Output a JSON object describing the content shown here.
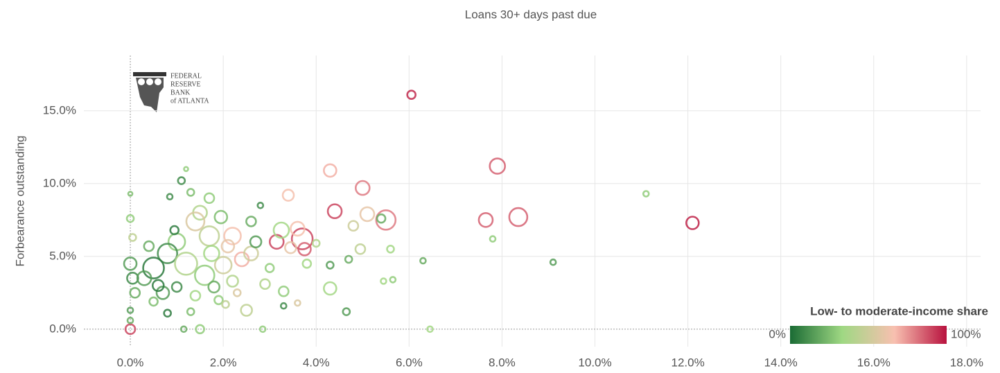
{
  "chart_data": {
    "type": "scatter",
    "title": "Loans 30+ days past due",
    "y_label": "Forbearance outstanding",
    "logo": [
      "FEDERAL",
      "RESERVE",
      "BANK",
      "of ATLANTA"
    ],
    "xlim": [
      -1,
      18.3
    ],
    "ylim": [
      -1.2,
      18.8
    ],
    "xticks": [
      {
        "value": 0,
        "label": "0.0%"
      },
      {
        "value": 2,
        "label": "2.0%"
      },
      {
        "value": 4,
        "label": "4.0%"
      },
      {
        "value": 6,
        "label": "6.0%"
      },
      {
        "value": 8,
        "label": "8.0%"
      },
      {
        "value": 10,
        "label": "10.0%"
      },
      {
        "value": 12,
        "label": "12.0%"
      },
      {
        "value": 14,
        "label": "14.0%"
      },
      {
        "value": 16,
        "label": "16.0%"
      },
      {
        "value": 18,
        "label": "18.0%"
      }
    ],
    "yticks": [
      {
        "value": 0,
        "label": "0.0%"
      },
      {
        "value": 5,
        "label": "5.0%"
      },
      {
        "value": 10,
        "label": "10.0%"
      },
      {
        "value": 15,
        "label": "15.0%"
      }
    ],
    "grid": true,
    "legend": {
      "title": "Low- to moderate-income share",
      "min_label": "0%",
      "max_label": "100%",
      "position": "lower-right"
    },
    "colorscale": [
      "#1a6b34",
      "#9fd883",
      "#f8c0b0",
      "#b8123e"
    ],
    "series": [
      {
        "x": [
          6.05,
          7.9,
          4.3,
          5.0,
          3.4,
          4.4,
          5.1,
          5.5,
          8.35,
          7.65,
          12.1,
          11.1,
          9.1,
          7.8,
          6.45,
          6.3,
          5.65,
          5.45,
          5.6,
          4.95,
          4.8,
          5.4,
          4.3,
          4.65,
          4.7,
          3.7,
          3.6,
          3.75,
          3.15,
          3.45,
          3.25,
          3.6,
          3.3,
          3.3,
          2.85,
          2.5,
          2.4,
          2.2,
          2.6,
          2.8,
          3.8,
          4.0,
          4.3,
          1.5,
          1.15,
          0.0,
          0.0,
          0.0,
          0.0,
          0.0,
          0.05,
          0.0,
          0.05,
          0.1,
          1.2,
          1.1,
          1.3,
          0.85,
          1.7,
          1.5,
          1.4,
          1.95,
          1.7,
          1.0,
          0.8,
          0.5,
          0.3,
          1.2,
          1.6,
          2.0,
          2.6,
          1.8,
          1.3,
          0.8,
          0.7,
          0.5,
          2.2,
          2.9,
          1.0,
          1.9,
          2.3,
          0.4,
          0.95,
          2.1,
          2.7,
          3.0,
          0.6,
          1.4,
          2.05,
          1.75
        ],
        "values": [
          16.1,
          11.2,
          10.9,
          9.7,
          9.2,
          8.1,
          7.9,
          7.5,
          7.7,
          7.5,
          7.3,
          9.3,
          4.6,
          6.2,
          0.0,
          4.7,
          3.4,
          3.3,
          5.5,
          5.5,
          7.1,
          7.6,
          2.8,
          1.2,
          4.8,
          6.2,
          6.9,
          5.5,
          6.0,
          5.6,
          6.8,
          1.8,
          1.6,
          2.6,
          0.0,
          1.3,
          4.8,
          6.4,
          7.4,
          8.5,
          4.5,
          5.9,
          4.4,
          0.0,
          0.0,
          0.0,
          1.3,
          0.6,
          9.3,
          7.6,
          6.3,
          4.5,
          3.5,
          2.5,
          11.0,
          10.2,
          9.4,
          9.1,
          9.0,
          8.0,
          7.4,
          7.7,
          6.4,
          6.0,
          5.2,
          4.2,
          3.5,
          4.5,
          3.7,
          4.4,
          5.2,
          2.9,
          1.2,
          1.1,
          2.5,
          1.9,
          3.3,
          3.1,
          2.9,
          2.0,
          2.5,
          5.7,
          6.8,
          5.7,
          6.0,
          4.2,
          3.0,
          2.3,
          1.7,
          5.2
        ],
        "sizes": [
          6,
          11,
          9,
          10,
          8,
          10,
          10,
          14,
          13,
          10,
          9,
          4,
          4,
          4,
          4,
          4,
          4,
          4,
          5,
          7,
          7,
          6,
          9,
          5,
          5,
          15,
          10,
          9,
          10,
          8,
          11,
          4,
          4,
          7,
          4,
          8,
          10,
          12,
          7,
          4,
          6,
          5,
          5,
          6,
          4,
          7,
          4,
          4,
          3,
          5,
          5,
          9,
          8,
          7,
          3,
          5,
          5,
          4,
          7,
          10,
          13,
          9,
          14,
          12,
          14,
          15,
          10,
          16,
          14,
          12,
          10,
          8,
          5,
          5,
          9,
          6,
          8,
          7,
          7,
          6,
          5,
          7,
          6,
          9,
          8,
          6,
          8,
          7,
          5,
          11
        ],
        "share": [
          0.95,
          0.85,
          0.7,
          0.8,
          0.65,
          0.9,
          0.6,
          0.8,
          0.85,
          0.85,
          0.97,
          0.3,
          0.15,
          0.3,
          0.35,
          0.2,
          0.3,
          0.35,
          0.35,
          0.45,
          0.5,
          0.2,
          0.35,
          0.15,
          0.2,
          0.9,
          0.65,
          0.85,
          0.9,
          0.6,
          0.35,
          0.55,
          0.1,
          0.3,
          0.3,
          0.45,
          0.7,
          0.65,
          0.2,
          0.1,
          0.35,
          0.4,
          0.15,
          0.3,
          0.2,
          0.9,
          0.15,
          0.2,
          0.25,
          0.3,
          0.45,
          0.15,
          0.1,
          0.2,
          0.3,
          0.1,
          0.25,
          0.1,
          0.3,
          0.4,
          0.55,
          0.25,
          0.45,
          0.3,
          0.1,
          0.05,
          0.15,
          0.4,
          0.3,
          0.5,
          0.5,
          0.2,
          0.25,
          0.05,
          0.15,
          0.25,
          0.4,
          0.4,
          0.1,
          0.3,
          0.55,
          0.2,
          0.05,
          0.6,
          0.15,
          0.3,
          0.05,
          0.35,
          0.45,
          0.35
        ]
      }
    ]
  }
}
